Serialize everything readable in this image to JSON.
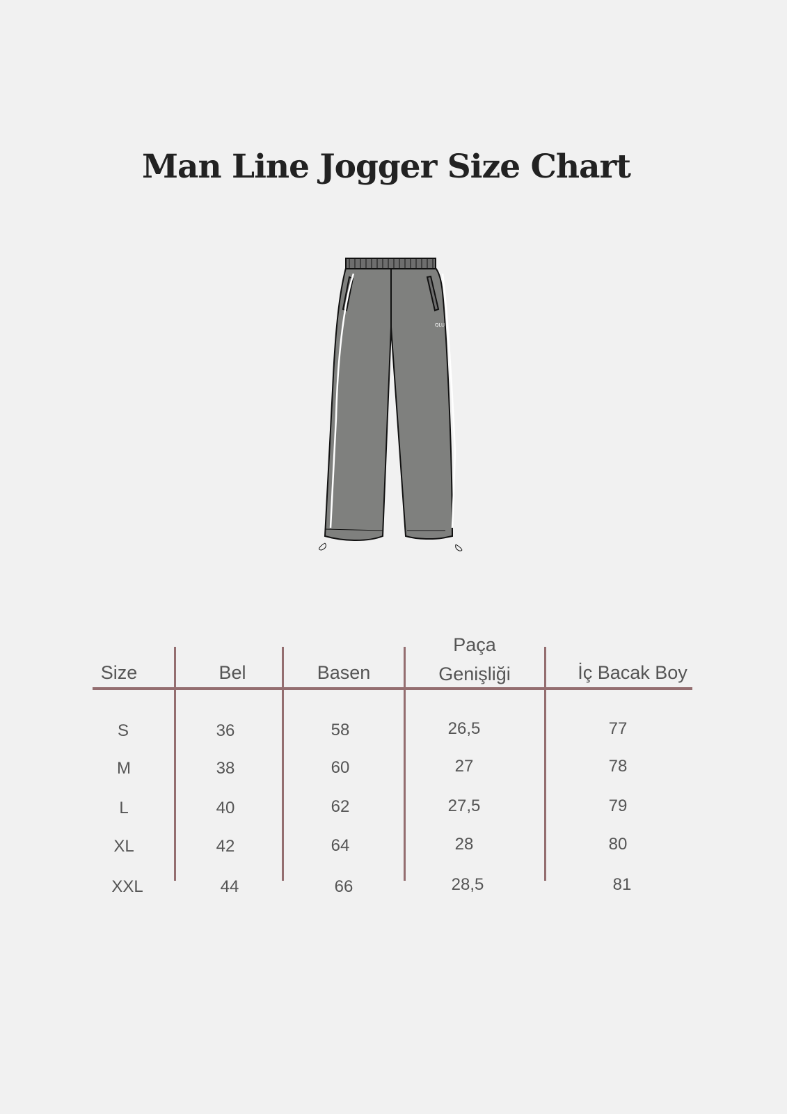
{
  "title": "Man Line Jogger Size Chart",
  "illustration": {
    "logo_text": "QLU",
    "fill_color": "#7f807e"
  },
  "table": {
    "line_color": "#946e70",
    "headers": [
      "Size",
      "Bel",
      "Basen",
      "Paça Genişliği",
      "İç Bacak Boy"
    ],
    "header_paca_line1": "Paça",
    "header_paca_line2": "Genişliği",
    "rows": [
      [
        "S",
        "36",
        "58",
        "26,5",
        "77"
      ],
      [
        "M",
        "38",
        "60",
        "27",
        "78"
      ],
      [
        "L",
        "40",
        "62",
        "27,5",
        "79"
      ],
      [
        "XL",
        "42",
        "64",
        "28",
        "80"
      ],
      [
        "XXL",
        "44",
        "66",
        "28,5",
        "81"
      ]
    ]
  }
}
